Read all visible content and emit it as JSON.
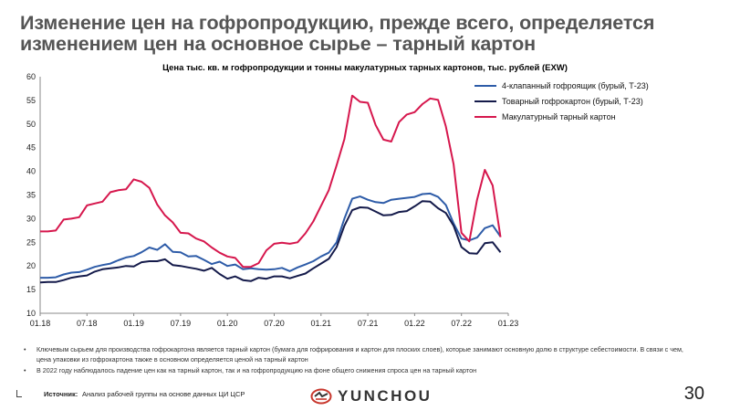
{
  "slide": {
    "title": "Изменение цен на гофропродукцию, прежде всего, определяется изменением цен на основное сырье – тарный картон",
    "page_number": "30",
    "bullets": [
      "Ключевым сырьем для производства гофрокартона является тарный картон (бумага для гофрирования и картон для плоских слоев), которые занимают основную долю в структуре себестоимости. В связи с чем, цена упаковки из гофрокартона также в основном определяется ценой на тарный картон",
      "В 2022 году наблюдалось падение цен как на тарный картон, так и на гофропродукцию на фоне общего снижения спроса цен на тарный картон"
    ],
    "source_label": "Источник:",
    "source_text": "Анализ рабочей группы на основе данных ЦИ ЦСР",
    "logo_text": "YUNCHOU"
  },
  "chart_data": {
    "type": "line",
    "title": "Цена тыс. кв. м гофропродукции и тонны макулатурных тарных картонов, тыс. рублей (EXW)",
    "xlabel": "",
    "ylabel": "",
    "ylim": [
      10,
      60
    ],
    "yticks": [
      10,
      15,
      20,
      25,
      30,
      35,
      40,
      45,
      50,
      55,
      60
    ],
    "x_tick_labels": [
      "01.18",
      "07.18",
      "01.19",
      "07.19",
      "01.20",
      "07.20",
      "01.21",
      "07.21",
      "01.22",
      "07.22",
      "01.23"
    ],
    "legend_position": "top-right",
    "grid": false,
    "series": [
      {
        "name": "4-клапанный гофроящик (бурый, Т-23)",
        "color": "#2e5ca8",
        "values": [
          17.5,
          17.5,
          17.6,
          18.2,
          18.6,
          18.7,
          19.2,
          19.8,
          20.2,
          20.5,
          21.2,
          21.8,
          22.1,
          22.9,
          23.9,
          23.4,
          24.6,
          23.0,
          22.9,
          22.0,
          22.1,
          21.3,
          20.4,
          20.9,
          20.0,
          20.3,
          19.3,
          19.5,
          19.3,
          19.2,
          19.3,
          19.6,
          18.9,
          19.7,
          20.3,
          21.0,
          22.0,
          22.8,
          25.0,
          30.0,
          34.2,
          34.7,
          34.0,
          33.5,
          33.3,
          34.0,
          34.2,
          34.4,
          34.6,
          35.2,
          35.3,
          34.6,
          32.9,
          29.0,
          25.8,
          25.4,
          26.0,
          28.0,
          28.6,
          26.2
        ]
      },
      {
        "name": "Товарный гофрокартон (бурый, Т-23)",
        "color": "#141a4a",
        "values": [
          16.5,
          16.6,
          16.6,
          17.0,
          17.5,
          17.8,
          18.0,
          18.8,
          19.3,
          19.5,
          19.7,
          20.0,
          19.9,
          20.8,
          21.0,
          21.0,
          21.4,
          20.2,
          20.0,
          19.7,
          19.4,
          19.0,
          19.6,
          18.3,
          17.3,
          17.8,
          17.0,
          16.8,
          17.5,
          17.3,
          17.8,
          17.8,
          17.4,
          17.9,
          18.4,
          19.5,
          20.5,
          21.5,
          24.0,
          28.5,
          31.8,
          32.4,
          32.3,
          31.5,
          30.7,
          30.8,
          31.4,
          31.6,
          32.6,
          33.7,
          33.6,
          32.2,
          31.2,
          28.5,
          24.0,
          22.7,
          22.6,
          24.8,
          25.0,
          22.9
        ]
      },
      {
        "name": "Макулатурный тарный картон",
        "color": "#d6174d",
        "values": [
          27.3,
          27.3,
          27.5,
          29.8,
          30.0,
          30.3,
          32.8,
          33.2,
          33.6,
          35.6,
          36.0,
          36.2,
          38.3,
          37.8,
          36.5,
          33.0,
          30.7,
          29.2,
          27.0,
          26.9,
          25.8,
          25.2,
          23.9,
          22.8,
          22.0,
          21.7,
          19.8,
          19.8,
          20.6,
          23.3,
          24.7,
          24.9,
          24.7,
          25.0,
          26.9,
          29.4,
          32.7,
          36.0,
          41.3,
          46.8,
          56.0,
          54.7,
          54.5,
          49.8,
          46.7,
          46.3,
          50.4,
          52.0,
          52.5,
          54.2,
          55.4,
          55.1,
          49.5,
          41.5,
          27.0,
          25.2,
          34.0,
          40.3,
          37.0,
          26.1
        ]
      }
    ]
  }
}
